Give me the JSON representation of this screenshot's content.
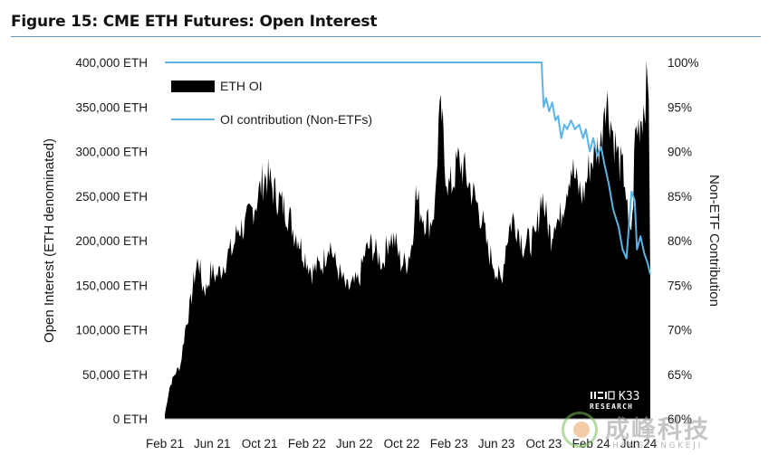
{
  "title": "Figure 15: CME ETH Futures: Open Interest",
  "watermark": {
    "main": "成峰科技",
    "sub": "SHENGFENGKEJI"
  },
  "brand": {
    "name": "K33",
    "sub": "RESEARCH"
  },
  "colors": {
    "oi_fill": "#000000",
    "contribution_line": "#5ab4e5",
    "title_rule": "#6e93b5"
  },
  "chart_data": {
    "type": "area",
    "title": "Figure 15: CME ETH Futures: Open Interest",
    "ylabel_left": "Open Interest (ETH denominated)",
    "ylabel_right": "Non-ETF Contribution",
    "x_ticks": [
      "Feb 21",
      "Jun 21",
      "Oct 21",
      "Feb 22",
      "Jun 22",
      "Oct 22",
      "Feb 23",
      "Jun 23",
      "Oct 23",
      "Feb 24",
      "Jun 24"
    ],
    "y_left_ticks": [
      "0 ETH",
      "50,000 ETH",
      "100,000 ETH",
      "150,000 ETH",
      "200,000 ETH",
      "250,000 ETH",
      "300,000 ETH",
      "350,000 ETH",
      "400,000 ETH"
    ],
    "y_right_ticks": [
      "60%",
      "65%",
      "70%",
      "75%",
      "80%",
      "85%",
      "90%",
      "95%",
      "100%"
    ],
    "ylim_left": [
      0,
      400000
    ],
    "ylim_right": [
      0.6,
      1.0
    ],
    "xlim": [
      "2021-02-08",
      "2024-07-05"
    ],
    "legend": {
      "placement": "top-left",
      "entries": [
        "ETH OI",
        "OI contribution (Non-ETFs)"
      ]
    },
    "grid": false,
    "series": [
      {
        "name": "ETH OI",
        "kind": "area",
        "axis": "left",
        "points": [
          [
            "2021-02-08",
            5000
          ],
          [
            "2021-02-20",
            35000
          ],
          [
            "2021-03-05",
            50000
          ],
          [
            "2021-03-20",
            60000
          ],
          [
            "2021-04-01",
            100000
          ],
          [
            "2021-04-15",
            130000
          ],
          [
            "2021-04-25",
            160000
          ],
          [
            "2021-05-05",
            180000
          ],
          [
            "2021-05-15",
            150000
          ],
          [
            "2021-05-25",
            145000
          ],
          [
            "2021-06-05",
            165000
          ],
          [
            "2021-06-20",
            160000
          ],
          [
            "2021-07-05",
            170000
          ],
          [
            "2021-07-20",
            185000
          ],
          [
            "2021-08-01",
            190000
          ],
          [
            "2021-08-15",
            215000
          ],
          [
            "2021-09-01",
            215000
          ],
          [
            "2021-09-15",
            230000
          ],
          [
            "2021-10-01",
            245000
          ],
          [
            "2021-10-15",
            265000
          ],
          [
            "2021-10-25",
            273000
          ],
          [
            "2021-11-05",
            265000
          ],
          [
            "2021-11-15",
            255000
          ],
          [
            "2021-11-25",
            248000
          ],
          [
            "2021-12-05",
            240000
          ],
          [
            "2021-12-15",
            235000
          ],
          [
            "2021-12-25",
            225000
          ],
          [
            "2022-01-05",
            210000
          ],
          [
            "2022-01-15",
            205000
          ],
          [
            "2022-01-25",
            190000
          ],
          [
            "2022-02-05",
            180000
          ],
          [
            "2022-02-20",
            165000
          ],
          [
            "2022-03-05",
            170000
          ],
          [
            "2022-03-20",
            175000
          ],
          [
            "2022-04-05",
            200000
          ],
          [
            "2022-04-20",
            175000
          ],
          [
            "2022-05-05",
            160000
          ],
          [
            "2022-05-20",
            145000
          ],
          [
            "2022-06-05",
            150000
          ],
          [
            "2022-06-20",
            155000
          ],
          [
            "2022-07-05",
            185000
          ],
          [
            "2022-07-20",
            195000
          ],
          [
            "2022-08-05",
            185000
          ],
          [
            "2022-08-20",
            175000
          ],
          [
            "2022-09-05",
            205000
          ],
          [
            "2022-09-20",
            200000
          ],
          [
            "2022-10-05",
            175000
          ],
          [
            "2022-10-20",
            175000
          ],
          [
            "2022-11-05",
            200000
          ],
          [
            "2022-11-10",
            255000
          ],
          [
            "2022-11-20",
            240000
          ],
          [
            "2022-12-05",
            225000
          ],
          [
            "2022-12-20",
            220000
          ],
          [
            "2023-01-01",
            240000
          ],
          [
            "2023-01-10",
            330000
          ],
          [
            "2023-01-18",
            340000
          ],
          [
            "2023-01-25",
            290000
          ],
          [
            "2023-02-05",
            260000
          ],
          [
            "2023-02-15",
            265000
          ],
          [
            "2023-03-01",
            290000
          ],
          [
            "2023-03-15",
            280000
          ],
          [
            "2023-04-01",
            260000
          ],
          [
            "2023-04-15",
            245000
          ],
          [
            "2023-05-01",
            225000
          ],
          [
            "2023-05-15",
            190000
          ],
          [
            "2023-06-01",
            175000
          ],
          [
            "2023-06-10",
            160000
          ],
          [
            "2023-06-20",
            155000
          ],
          [
            "2023-07-01",
            195000
          ],
          [
            "2023-07-10",
            215000
          ],
          [
            "2023-07-20",
            225000
          ],
          [
            "2023-08-01",
            215000
          ],
          [
            "2023-08-15",
            195000
          ],
          [
            "2023-09-01",
            200000
          ],
          [
            "2023-09-15",
            200000
          ],
          [
            "2023-10-01",
            255000
          ],
          [
            "2023-10-15",
            220000
          ],
          [
            "2023-10-25",
            205000
          ],
          [
            "2023-11-05",
            230000
          ],
          [
            "2023-11-15",
            220000
          ],
          [
            "2023-12-01",
            255000
          ],
          [
            "2023-12-15",
            285000
          ],
          [
            "2024-01-01",
            260000
          ],
          [
            "2024-01-15",
            250000
          ],
          [
            "2024-02-01",
            285000
          ],
          [
            "2024-02-15",
            300000
          ],
          [
            "2024-03-01",
            310000
          ],
          [
            "2024-03-10",
            365000
          ],
          [
            "2024-03-20",
            350000
          ],
          [
            "2024-04-01",
            320000
          ],
          [
            "2024-04-15",
            290000
          ],
          [
            "2024-05-01",
            270000
          ],
          [
            "2024-05-10",
            210000
          ],
          [
            "2024-05-20",
            220000
          ],
          [
            "2024-05-27",
            320000
          ],
          [
            "2024-06-05",
            330000
          ],
          [
            "2024-06-15",
            345000
          ],
          [
            "2024-06-25",
            370000
          ],
          [
            "2024-07-01",
            375000
          ],
          [
            "2024-07-05",
            160000
          ]
        ]
      },
      {
        "name": "OI contribution (Non-ETFs)",
        "kind": "line",
        "axis": "right",
        "points": [
          [
            "2021-02-08",
            1.0
          ],
          [
            "2023-10-01",
            1.0
          ],
          [
            "2023-10-02",
            0.985
          ],
          [
            "2023-10-06",
            0.95
          ],
          [
            "2023-10-12",
            0.96
          ],
          [
            "2023-10-20",
            0.945
          ],
          [
            "2023-10-28",
            0.955
          ],
          [
            "2023-11-05",
            0.935
          ],
          [
            "2023-11-12",
            0.94
          ],
          [
            "2023-11-20",
            0.915
          ],
          [
            "2023-11-28",
            0.93
          ],
          [
            "2023-12-05",
            0.925
          ],
          [
            "2023-12-15",
            0.935
          ],
          [
            "2023-12-25",
            0.925
          ],
          [
            "2024-01-05",
            0.93
          ],
          [
            "2024-01-15",
            0.915
          ],
          [
            "2024-01-22",
            0.925
          ],
          [
            "2024-02-01",
            0.9
          ],
          [
            "2024-02-10",
            0.915
          ],
          [
            "2024-02-20",
            0.895
          ],
          [
            "2024-03-01",
            0.905
          ],
          [
            "2024-03-10",
            0.885
          ],
          [
            "2024-03-20",
            0.865
          ],
          [
            "2024-04-01",
            0.835
          ],
          [
            "2024-04-15",
            0.815
          ],
          [
            "2024-04-25",
            0.79
          ],
          [
            "2024-05-05",
            0.78
          ],
          [
            "2024-05-12",
            0.82
          ],
          [
            "2024-05-18",
            0.855
          ],
          [
            "2024-05-26",
            0.845
          ],
          [
            "2024-06-01",
            0.79
          ],
          [
            "2024-06-10",
            0.805
          ],
          [
            "2024-06-20",
            0.785
          ],
          [
            "2024-06-28",
            0.775
          ],
          [
            "2024-07-05",
            0.762
          ]
        ]
      }
    ]
  }
}
